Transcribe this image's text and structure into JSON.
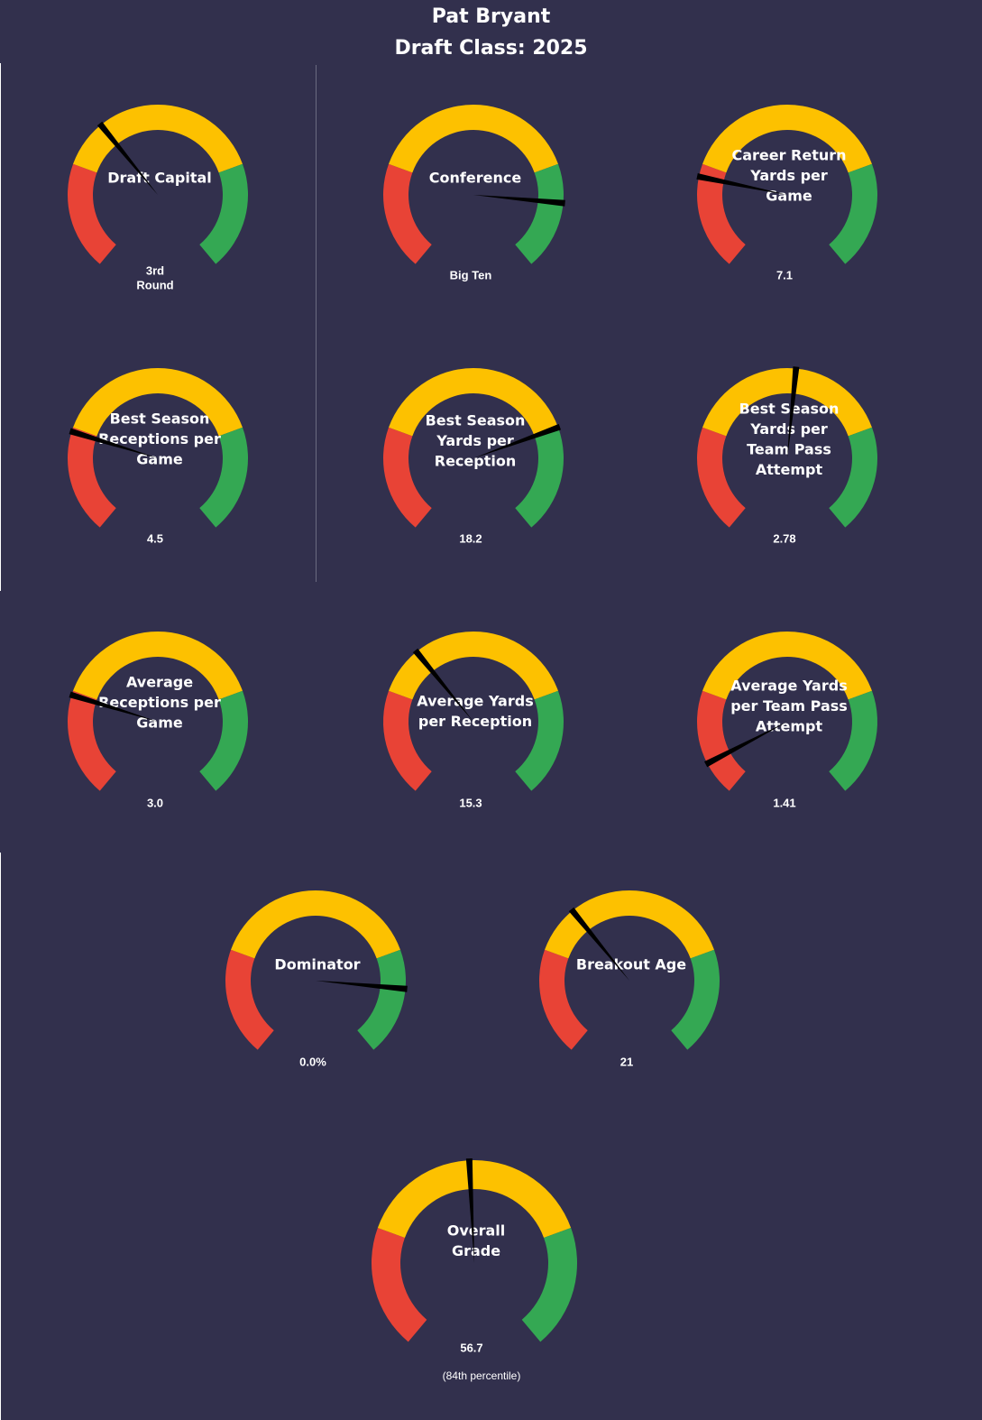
{
  "header": {
    "player": "Pat Bryant",
    "draft_class": "Draft Class: 2025"
  },
  "colors": {
    "background": "#32304d",
    "red": "#e84336",
    "yellow": "#fdc100",
    "green": "#34a853",
    "needle": "#000000",
    "text": "#ffffff"
  },
  "chart_data": [
    {
      "type": "gauge",
      "label": [
        "Draft Capital"
      ],
      "value_text": [
        "3rd",
        "Round"
      ],
      "needle_fraction": 0.36
    },
    {
      "type": "gauge",
      "label": [
        "Conference"
      ],
      "value_text": [
        "Big Ten"
      ],
      "needle_fraction": 0.84
    },
    {
      "type": "gauge",
      "label": [
        "Career Return",
        "Yards per",
        "Game"
      ],
      "value_text": [
        "7.1"
      ],
      "needle_fraction": 0.22
    },
    {
      "type": "gauge",
      "label": [
        "Best Season",
        "Receptions per",
        "Game"
      ],
      "value_text": [
        "4.5"
      ],
      "needle_fraction": 0.24
    },
    {
      "type": "gauge",
      "label": [
        "Best Season",
        "Yards per",
        "Reception"
      ],
      "value_text": [
        "18.2"
      ],
      "needle_fraction": 0.75
    },
    {
      "type": "gauge",
      "label": [
        "Best Season",
        "Yards per",
        "Team Pass",
        "Attempt"
      ],
      "value_text": [
        "2.78"
      ],
      "needle_fraction": 0.52
    },
    {
      "type": "gauge",
      "label": [
        "Average",
        "Receptions per",
        "Game"
      ],
      "value_text": [
        "3.0"
      ],
      "needle_fraction": 0.24
    },
    {
      "type": "gauge",
      "label": [
        "Average Yards",
        "per Reception"
      ],
      "value_text": [
        "15.3"
      ],
      "needle_fraction": 0.36
    },
    {
      "type": "gauge",
      "label": [
        "Average Yards",
        "per Team Pass",
        "Attempt"
      ],
      "value_text": [
        "1.41"
      ],
      "needle_fraction": 0.08
    },
    {
      "type": "gauge",
      "label": [
        "Dominator"
      ],
      "value_text": [
        "0.0%"
      ],
      "needle_fraction": 0.84
    },
    {
      "type": "gauge",
      "label": [
        "Breakout Age"
      ],
      "value_text": [
        "21"
      ],
      "needle_fraction": 0.36
    },
    {
      "type": "gauge",
      "label": [
        "Overall",
        "Grade"
      ],
      "value_text": [
        "56.7"
      ],
      "sub_text": "(84th  percentile)",
      "needle_fraction": 0.49
    }
  ]
}
